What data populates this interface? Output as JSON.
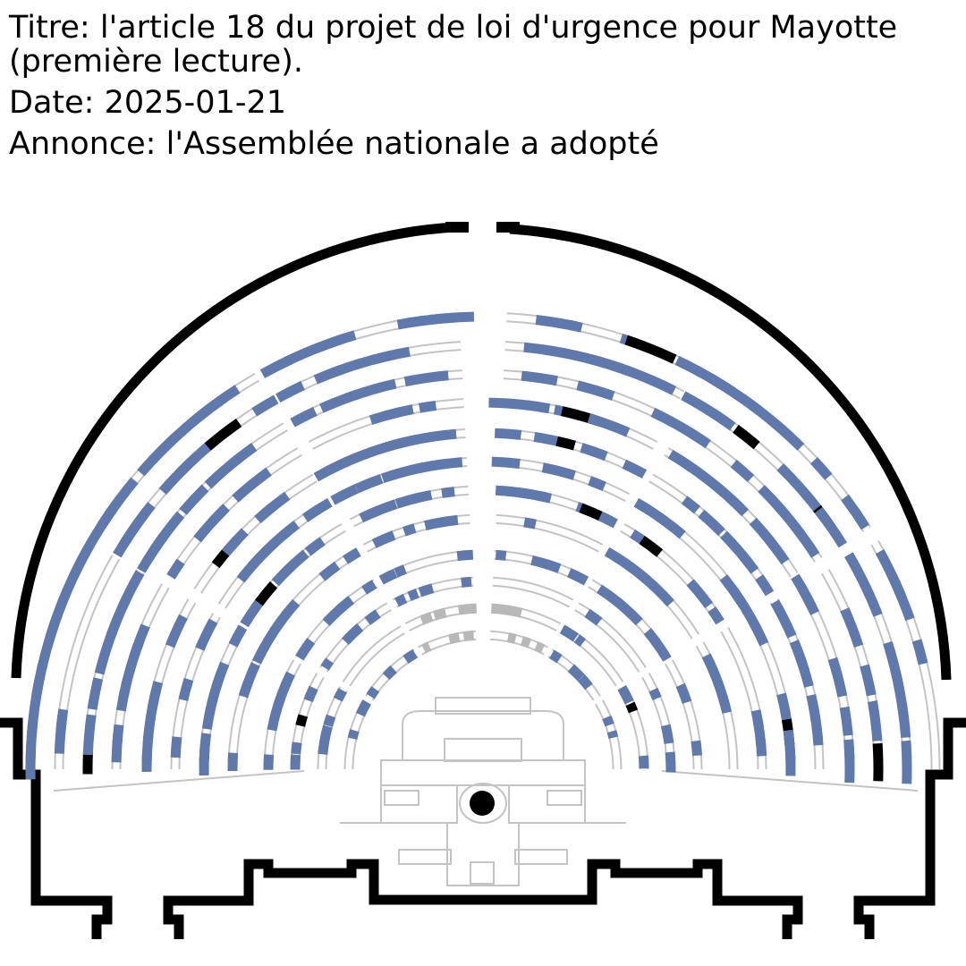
{
  "vote": {
    "title_prefix": "Titre:",
    "title": "l'article 18 du projet de loi d'urgence pour Mayotte (première lecture).",
    "date_prefix": "Date:",
    "date": "2025-01-21",
    "announce_prefix": "Annonce:",
    "announcement": "l'Assemblée nationale a adopté"
  },
  "colors": {
    "seat_outline": "#c4c4c4",
    "voted": "#6079ad",
    "other": "#000000",
    "absent_fill": "#b8b8b8",
    "walls": "#000000"
  },
  "legend_semantics": [
    "seat-voted",
    "seat-black-mark",
    "seat-empty"
  ]
}
